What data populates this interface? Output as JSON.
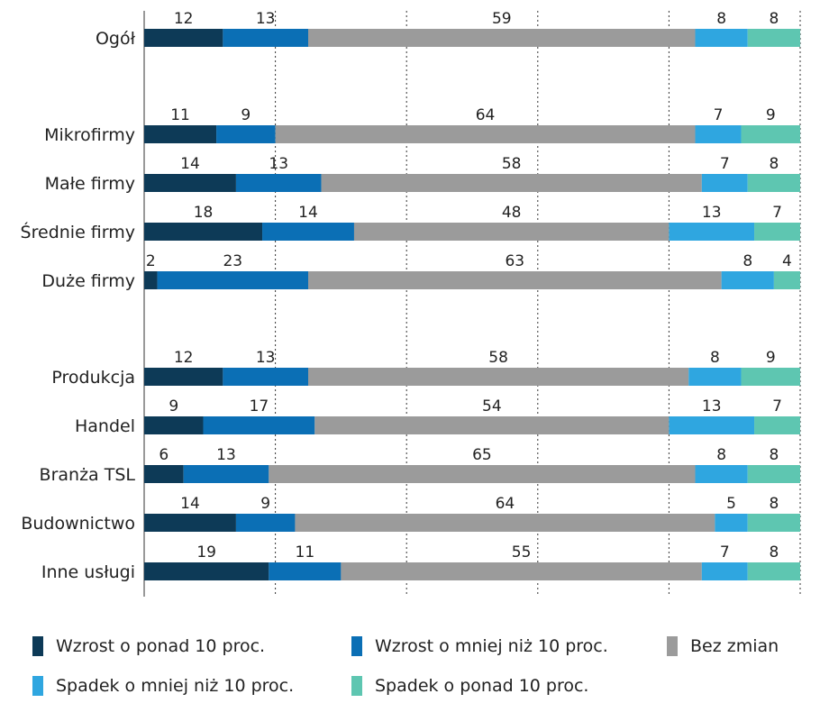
{
  "chart_data": {
    "type": "bar",
    "orientation": "horizontal",
    "stacked": true,
    "categories": [
      "Ogół",
      "Mikrofirmy",
      "Małe firmy",
      "Średnie firmy",
      "Duże firmy",
      "Produkcja",
      "Handel",
      "Branża TSL",
      "Budownictwo",
      "Inne usługi"
    ],
    "series": [
      {
        "name": "Wzrost o ponad 10 proc.",
        "color": "#0d3a57",
        "values": [
          12,
          11,
          14,
          18,
          2,
          12,
          9,
          6,
          14,
          19
        ]
      },
      {
        "name": "Wzrost o mniej niż 10 proc.",
        "color": "#0b6fb5",
        "values": [
          13,
          9,
          13,
          14,
          23,
          13,
          17,
          13,
          9,
          11
        ]
      },
      {
        "name": "Bez zmian",
        "color": "#9b9b9b",
        "values": [
          59,
          64,
          58,
          48,
          63,
          58,
          54,
          65,
          64,
          55
        ]
      },
      {
        "name": "Spadek o mniej niż 10 proc.",
        "color": "#2fa6e0",
        "values": [
          8,
          7,
          7,
          13,
          8,
          8,
          13,
          8,
          5,
          7
        ]
      },
      {
        "name": "Spadek o ponad 10 proc.",
        "color": "#5ec6b1",
        "values": [
          8,
          9,
          8,
          7,
          4,
          9,
          7,
          8,
          8,
          8
        ]
      }
    ],
    "xlim": [
      0,
      100
    ],
    "grid": "vertical dotted",
    "legend_position": "bottom"
  }
}
